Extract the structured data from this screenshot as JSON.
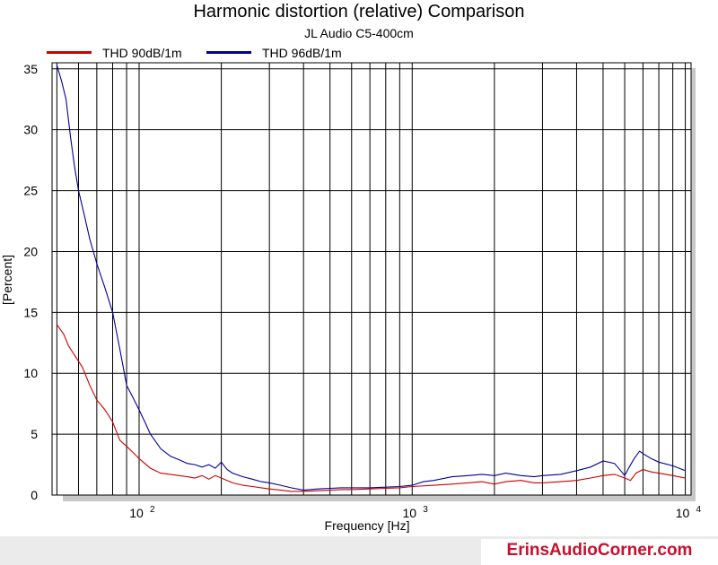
{
  "chart_data": {
    "type": "line",
    "title": "Harmonic distortion (relative) Comparison",
    "subtitle": "JL Audio C5-400cm",
    "xlabel": "Frequency [Hz]",
    "ylabel": "[Percent]",
    "xscale": "log",
    "xlim": [
      48,
      10500
    ],
    "ylim": [
      0,
      35.5
    ],
    "x_ticks": [
      {
        "value": 100,
        "base": "10",
        "exp": "2"
      },
      {
        "value": 1000,
        "base": "10",
        "exp": "3"
      },
      {
        "value": 10000,
        "base": "10",
        "exp": "4"
      }
    ],
    "y_ticks": [
      0,
      5,
      10,
      15,
      20,
      25,
      30,
      35
    ],
    "grid": true,
    "legend_position": "top-left",
    "series": [
      {
        "name": "THD 90dB/1m",
        "color": "#cc0000",
        "x": [
          50,
          53,
          55,
          58,
          62,
          66,
          70,
          75,
          80,
          85,
          90,
          95,
          100,
          110,
          120,
          130,
          140,
          150,
          160,
          170,
          180,
          190,
          200,
          210,
          220,
          240,
          260,
          280,
          300,
          330,
          360,
          400,
          450,
          500,
          550,
          600,
          700,
          800,
          900,
          1000,
          1200,
          1400,
          1600,
          1800,
          2000,
          2200,
          2500,
          2800,
          3000,
          3500,
          4000,
          4500,
          5000,
          5500,
          6000,
          6300,
          6600,
          7000,
          7500,
          8000,
          9000,
          10000
        ],
        "values": [
          14.0,
          13.2,
          12.3,
          11.5,
          10.5,
          9.0,
          7.8,
          7.0,
          6.0,
          4.5,
          4.0,
          3.5,
          3.0,
          2.2,
          1.8,
          1.7,
          1.6,
          1.5,
          1.4,
          1.6,
          1.3,
          1.6,
          1.4,
          1.2,
          1.0,
          0.8,
          0.7,
          0.6,
          0.5,
          0.4,
          0.3,
          0.3,
          0.35,
          0.4,
          0.45,
          0.45,
          0.5,
          0.55,
          0.6,
          0.7,
          0.8,
          0.9,
          1.0,
          1.1,
          0.9,
          1.1,
          1.2,
          1.0,
          1.0,
          1.1,
          1.2,
          1.4,
          1.6,
          1.7,
          1.4,
          1.2,
          1.8,
          2.1,
          1.9,
          1.8,
          1.6,
          1.4
        ]
      },
      {
        "name": "THD 96dB/1m",
        "color": "#000099",
        "x": [
          50,
          52,
          54,
          56,
          58,
          60,
          63,
          66,
          70,
          75,
          80,
          85,
          90,
          95,
          100,
          105,
          110,
          120,
          130,
          140,
          150,
          160,
          170,
          180,
          190,
          200,
          210,
          220,
          240,
          260,
          280,
          300,
          330,
          360,
          400,
          450,
          500,
          550,
          600,
          700,
          800,
          900,
          1000,
          1100,
          1200,
          1400,
          1600,
          1800,
          2000,
          2200,
          2500,
          2800,
          3000,
          3500,
          4000,
          4500,
          5000,
          5500,
          5800,
          6000,
          6200,
          6500,
          6800,
          7000,
          7500,
          8000,
          9000,
          10000
        ],
        "values": [
          35.3,
          34.0,
          32.5,
          29.5,
          27.0,
          25.0,
          23.0,
          21.0,
          19.0,
          17.0,
          15.0,
          12.0,
          9.0,
          8.0,
          7.0,
          6.0,
          5.0,
          3.8,
          3.2,
          2.9,
          2.6,
          2.5,
          2.3,
          2.5,
          2.2,
          2.7,
          2.1,
          1.8,
          1.5,
          1.3,
          1.1,
          1.0,
          0.8,
          0.6,
          0.4,
          0.5,
          0.55,
          0.6,
          0.6,
          0.6,
          0.65,
          0.7,
          0.8,
          1.1,
          1.2,
          1.5,
          1.6,
          1.7,
          1.6,
          1.8,
          1.6,
          1.5,
          1.6,
          1.7,
          2.0,
          2.3,
          2.8,
          2.6,
          2.0,
          1.6,
          2.2,
          3.0,
          3.6,
          3.4,
          3.0,
          2.7,
          2.4,
          2.0
        ]
      }
    ]
  },
  "watermark": "ErinsAudioCorner.com"
}
